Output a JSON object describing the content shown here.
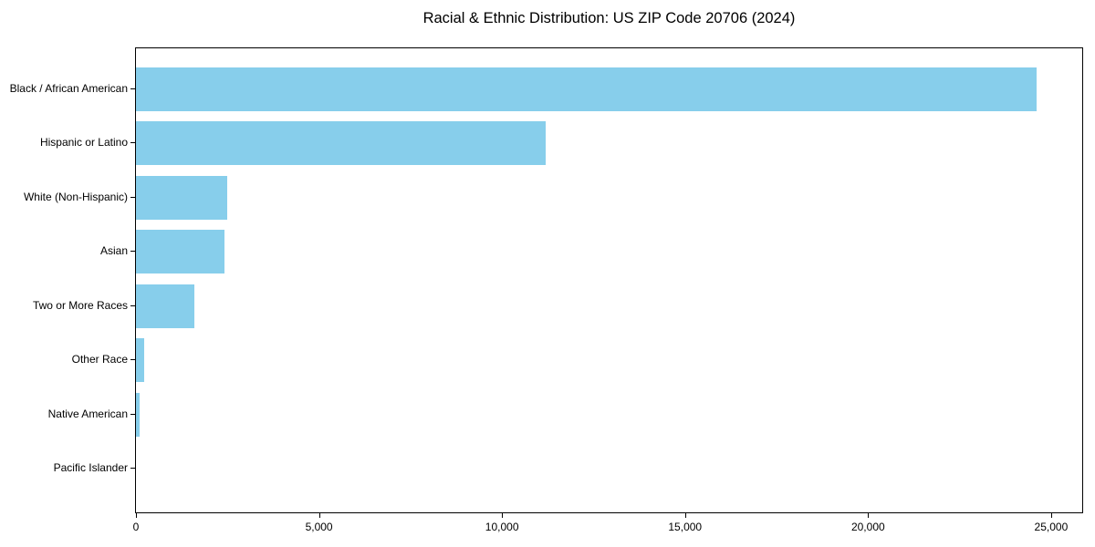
{
  "chart_data": {
    "type": "bar",
    "orientation": "horizontal",
    "title": "Racial & Ethnic Distribution: US ZIP Code 20706 (2024)",
    "categories": [
      "Black / African American",
      "Hispanic or Latino",
      "White (Non-Hispanic)",
      "Asian",
      "Two or More Races",
      "Other Race",
      "Native American",
      "Pacific Islander"
    ],
    "values": [
      24600,
      11200,
      2500,
      2430,
      1600,
      230,
      90,
      0
    ],
    "xlabel": "",
    "ylabel": "",
    "xlim": [
      0,
      25850
    ],
    "x_ticks": [
      {
        "value": 0,
        "label": "0"
      },
      {
        "value": 5000,
        "label": "5,000"
      },
      {
        "value": 10000,
        "label": "10,000"
      },
      {
        "value": 15000,
        "label": "15,000"
      },
      {
        "value": 20000,
        "label": "20,000"
      },
      {
        "value": 25000,
        "label": "25,000"
      }
    ],
    "grid": false,
    "legend": null,
    "colors": {
      "bar": "#87CEEB",
      "axis": "#000000",
      "text": "#000000",
      "background": "#FFFFFF"
    }
  }
}
